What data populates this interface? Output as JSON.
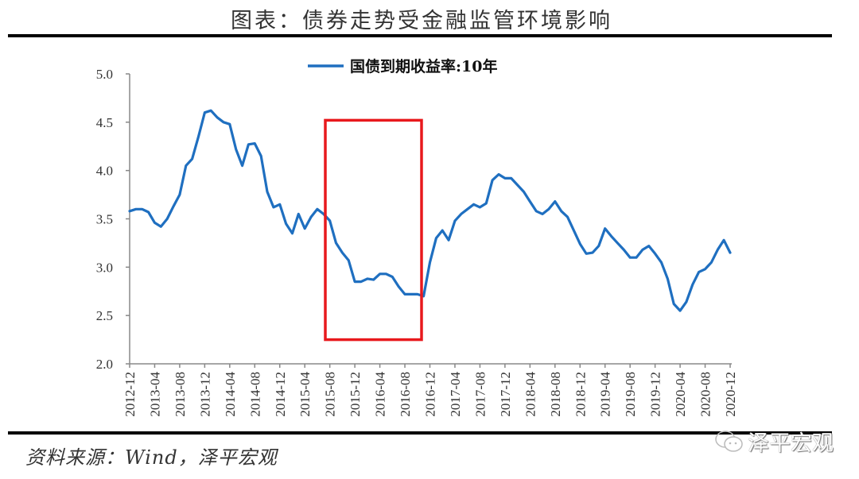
{
  "header": {
    "title": "图表：债券走势受金融监管环境影响"
  },
  "footer": {
    "source": "资料来源：Wind，泽平宏观",
    "watermark": "泽平宏观"
  },
  "colors": {
    "line": "#1f6fc0",
    "highlight_box": "#e8191d",
    "axis": "#888888",
    "rule": "#000000"
  },
  "chart_data": {
    "type": "line",
    "title": "图表：债券走势受金融监管环境影响",
    "xlabel": "",
    "ylabel": "",
    "ylim": [
      2.0,
      5.0
    ],
    "yticks": [
      "5.0",
      "4.5",
      "4.0",
      "3.5",
      "3.0",
      "2.5",
      "2.0"
    ],
    "xticks": [
      "2012-12",
      "2013-04",
      "2013-08",
      "2013-12",
      "2014-04",
      "2014-08",
      "2014-12",
      "2015-04",
      "2015-08",
      "2015-12",
      "2016-04",
      "2016-08",
      "2016-12",
      "2017-04",
      "2017-08",
      "2017-12",
      "2018-04",
      "2018-08",
      "2018-12",
      "2019-04",
      "2019-08",
      "2019-12",
      "2020-04",
      "2020-08",
      "2020-12"
    ],
    "grid": false,
    "legend": {
      "position": "top-center",
      "entries": [
        "国债到期收益率:10年"
      ]
    },
    "annotations": [
      {
        "type": "rectangle",
        "color": "#e8191d",
        "x_from": "2015-08",
        "x_to": "2016-12",
        "y_from": 2.25,
        "y_to": 4.52,
        "label": ""
      }
    ],
    "series": [
      {
        "name": "国债到期收益率:10年",
        "x": [
          "2012-12",
          "2013-01",
          "2013-02",
          "2013-03",
          "2013-04",
          "2013-05",
          "2013-06",
          "2013-07",
          "2013-08",
          "2013-09",
          "2013-10",
          "2013-11",
          "2013-12",
          "2014-01",
          "2014-02",
          "2014-03",
          "2014-04",
          "2014-05",
          "2014-06",
          "2014-07",
          "2014-08",
          "2014-09",
          "2014-10",
          "2014-11",
          "2014-12",
          "2015-01",
          "2015-02",
          "2015-03",
          "2015-04",
          "2015-05",
          "2015-06",
          "2015-07",
          "2015-08",
          "2015-09",
          "2015-10",
          "2015-11",
          "2015-12",
          "2016-01",
          "2016-02",
          "2016-03",
          "2016-04",
          "2016-05",
          "2016-06",
          "2016-07",
          "2016-08",
          "2016-09",
          "2016-10",
          "2016-11",
          "2016-12",
          "2017-01",
          "2017-02",
          "2017-03",
          "2017-04",
          "2017-05",
          "2017-06",
          "2017-07",
          "2017-08",
          "2017-09",
          "2017-10",
          "2017-11",
          "2017-12",
          "2018-01",
          "2018-02",
          "2018-03",
          "2018-04",
          "2018-05",
          "2018-06",
          "2018-07",
          "2018-08",
          "2018-09",
          "2018-10",
          "2018-11",
          "2018-12",
          "2019-01",
          "2019-02",
          "2019-03",
          "2019-04",
          "2019-05",
          "2019-06",
          "2019-07",
          "2019-08",
          "2019-09",
          "2019-10",
          "2019-11",
          "2019-12",
          "2020-01",
          "2020-02",
          "2020-03",
          "2020-04",
          "2020-05",
          "2020-06",
          "2020-07",
          "2020-08",
          "2020-09",
          "2020-10",
          "2020-11",
          "2020-12"
        ],
        "values": [
          3.58,
          3.6,
          3.6,
          3.57,
          3.46,
          3.42,
          3.5,
          3.63,
          3.75,
          4.05,
          4.12,
          4.35,
          4.6,
          4.62,
          4.55,
          4.5,
          4.48,
          4.22,
          4.05,
          4.27,
          4.28,
          4.15,
          3.78,
          3.62,
          3.65,
          3.45,
          3.35,
          3.55,
          3.4,
          3.52,
          3.6,
          3.55,
          3.48,
          3.25,
          3.15,
          3.07,
          2.85,
          2.85,
          2.88,
          2.87,
          2.93,
          2.93,
          2.9,
          2.8,
          2.72,
          2.72,
          2.72,
          2.7,
          3.05,
          3.3,
          3.38,
          3.28,
          3.48,
          3.55,
          3.6,
          3.65,
          3.62,
          3.66,
          3.9,
          3.96,
          3.92,
          3.92,
          3.85,
          3.78,
          3.68,
          3.58,
          3.55,
          3.6,
          3.68,
          3.58,
          3.52,
          3.38,
          3.24,
          3.14,
          3.15,
          3.22,
          3.4,
          3.32,
          3.25,
          3.18,
          3.1,
          3.1,
          3.18,
          3.22,
          3.14,
          3.05,
          2.88,
          2.62,
          2.55,
          2.64,
          2.82,
          2.95,
          2.98,
          3.05,
          3.18,
          3.28,
          3.15
        ]
      }
    ]
  }
}
